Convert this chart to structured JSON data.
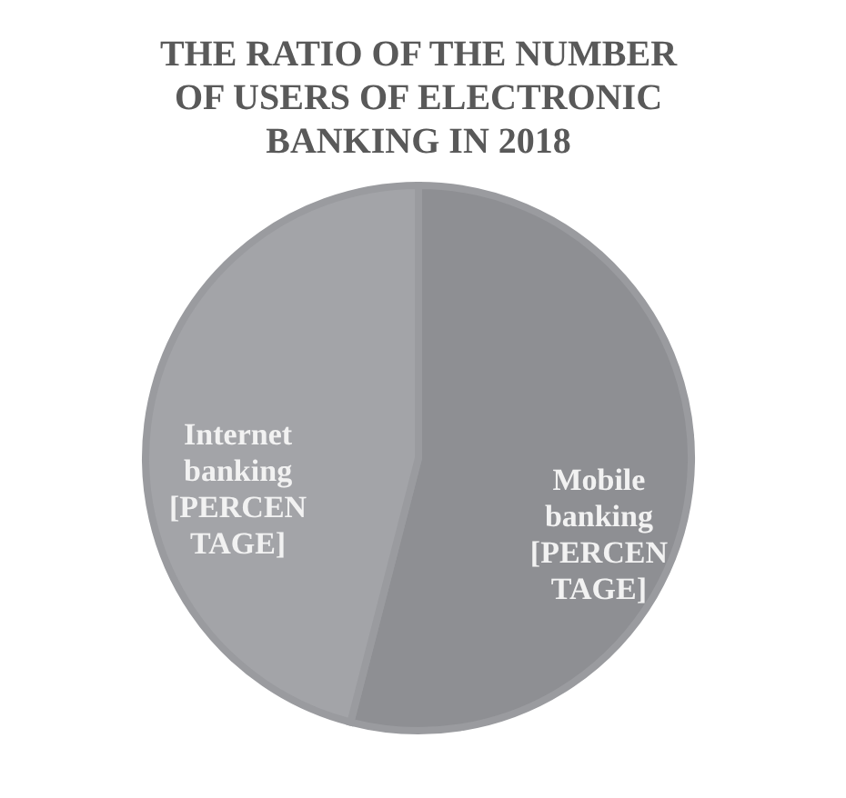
{
  "chart_data": {
    "type": "pie",
    "title": "THE RATIO OF THE NUMBER OF USERS OF ELECTRONIC BANKING IN 2018",
    "categories": [
      "Mobile banking",
      "Internet banking"
    ],
    "values": [
      54,
      46
    ],
    "colors": [
      "#8e8f93",
      "#a3a4a8"
    ],
    "value_labels": [
      "[PERCENTAGE]",
      "[PERCENTAGE]"
    ],
    "legend": false
  }
}
